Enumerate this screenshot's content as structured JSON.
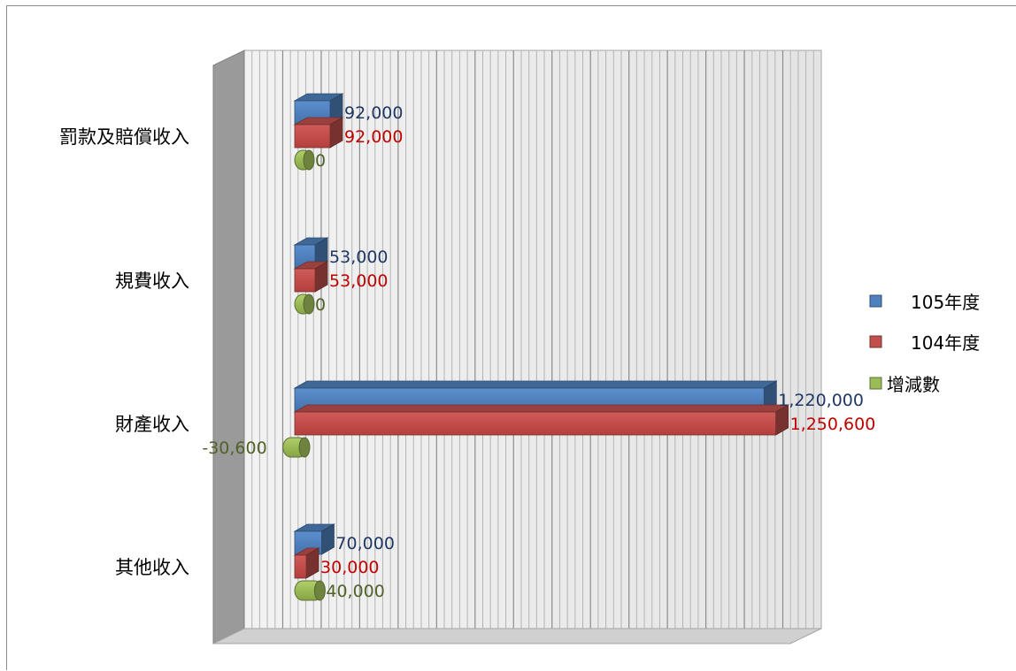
{
  "chart_data": {
    "type": "bar",
    "orientation": "horizontal",
    "three_d": true,
    "categories": [
      "罰款及賠償收入",
      "規費收入",
      "財產收入",
      "其他收入"
    ],
    "series": [
      {
        "name": "105年度",
        "values": [
          92000,
          53000,
          1220000,
          70000
        ],
        "labels": [
          "92,000",
          "53,000",
          "1,220,000",
          "70,000"
        ]
      },
      {
        "name": "104年度",
        "values": [
          92000,
          53000,
          1250600,
          30000
        ],
        "labels": [
          "92,000",
          "53,000",
          "1,250,600",
          "30,000"
        ]
      },
      {
        "name": "增減數",
        "values": [
          0,
          0,
          -30600,
          40000
        ],
        "labels": [
          "0",
          "0",
          "-30,600",
          "40,000"
        ]
      }
    ],
    "xlim": [
      -100000,
      1400000
    ],
    "grid": true,
    "legend_position": "right",
    "colors": {
      "series": [
        "#4f81bd",
        "#c0504d",
        "#9bbb59"
      ],
      "labels": [
        "#1f3864",
        "#c00000",
        "#4f6228"
      ]
    }
  }
}
